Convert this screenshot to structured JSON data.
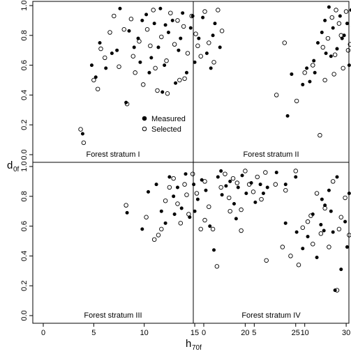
{
  "chart_data": {
    "type": "scatter",
    "xlabel": "h",
    "xlabel_sub": "70f",
    "ylabel": "d",
    "ylabel_sub": "0f",
    "xlim": [
      0,
      30
    ],
    "ylim": [
      0,
      1
    ],
    "x_ticks": [
      "0",
      "5",
      "10",
      "15",
      "20",
      "25",
      "30"
    ],
    "y_ticks": [
      "0.0",
      "0.2",
      "0.4",
      "0.6",
      "0.8",
      "1.0"
    ],
    "legend": {
      "placement": "panel I, lower-right",
      "entries": [
        {
          "marker": "filled",
          "label": "Measured"
        },
        {
          "marker": "open",
          "label": "Selected"
        }
      ]
    },
    "panels": [
      {
        "label": "Forest stratum I",
        "measured": [
          [
            3.9,
            0.14
          ],
          [
            4.8,
            0.6
          ],
          [
            5.6,
            0.75
          ],
          [
            6.8,
            0.68
          ],
          [
            7.3,
            0.7
          ],
          [
            7.6,
            0.98
          ],
          [
            8.2,
            0.35
          ],
          [
            8.5,
            0.83
          ],
          [
            9.0,
            0.72
          ],
          [
            9.4,
            0.78
          ],
          [
            9.8,
            0.9
          ],
          [
            10.2,
            0.94
          ],
          [
            10.7,
            0.65
          ],
          [
            11.0,
            0.88
          ],
          [
            11.4,
            0.72
          ],
          [
            11.6,
            0.98
          ],
          [
            12.0,
            0.6
          ],
          [
            12.4,
            0.82
          ],
          [
            12.8,
            0.9
          ],
          [
            13.1,
            0.48
          ],
          [
            13.4,
            0.7
          ],
          [
            13.8,
            0.95
          ],
          [
            14.2,
            0.55
          ],
          [
            14.6,
            0.85
          ],
          [
            15.0,
            0.62
          ],
          [
            15.4,
            0.78
          ],
          [
            15.8,
            0.92
          ],
          [
            16.2,
            0.68
          ],
          [
            16.6,
            0.58
          ],
          [
            17.0,
            0.88
          ],
          [
            17.5,
            0.72
          ],
          [
            5.2,
            0.52
          ],
          [
            6.2,
            0.58
          ],
          [
            9.6,
            0.62
          ],
          [
            10.5,
            0.55
          ],
          [
            12.1,
            0.87
          ],
          [
            13.6,
            0.78
          ],
          [
            14.8,
            0.93
          ],
          [
            16.8,
            0.8
          ],
          [
            11.8,
            0.42
          ]
        ],
        "selected": [
          [
            3.7,
            0.17
          ],
          [
            4.0,
            0.08
          ],
          [
            5.0,
            0.5
          ],
          [
            5.4,
            0.44
          ],
          [
            5.7,
            0.71
          ],
          [
            6.1,
            0.65
          ],
          [
            6.6,
            0.82
          ],
          [
            7.0,
            0.93
          ],
          [
            7.5,
            0.59
          ],
          [
            8.0,
            0.84
          ],
          [
            8.3,
            0.34
          ],
          [
            8.7,
            0.91
          ],
          [
            9.1,
            0.55
          ],
          [
            9.5,
            0.76
          ],
          [
            9.9,
            0.47
          ],
          [
            10.3,
            0.84
          ],
          [
            10.6,
            0.73
          ],
          [
            10.9,
            0.97
          ],
          [
            11.3,
            0.43
          ],
          [
            11.7,
            0.79
          ],
          [
            12.2,
            0.63
          ],
          [
            12.6,
            0.95
          ],
          [
            13.0,
            0.74
          ],
          [
            13.5,
            0.5
          ],
          [
            13.9,
            0.86
          ],
          [
            14.3,
            0.68
          ],
          [
            14.7,
            0.93
          ],
          [
            15.1,
            0.81
          ],
          [
            15.6,
            0.66
          ],
          [
            16.0,
            0.96
          ],
          [
            16.4,
            0.75
          ],
          [
            16.9,
            0.62
          ],
          [
            17.3,
            0.97
          ],
          [
            17.7,
            0.83
          ],
          [
            8.9,
            0.66
          ],
          [
            12.3,
            0.41
          ],
          [
            13.3,
            0.9
          ],
          [
            15.3,
            0.73
          ],
          [
            11.1,
            0.58
          ],
          [
            14.0,
            0.51
          ]
        ]
      },
      {
        "label": "Forest stratum II",
        "measured": [
          [
            8.3,
            0.26
          ],
          [
            8.7,
            0.54
          ],
          [
            9.8,
            0.47
          ],
          [
            10.5,
            0.49
          ],
          [
            10.9,
            0.63
          ],
          [
            11.3,
            0.75
          ],
          [
            11.7,
            0.82
          ],
          [
            12.0,
            0.9
          ],
          [
            12.4,
            0.99
          ],
          [
            12.8,
            0.85
          ],
          [
            13.2,
            0.71
          ],
          [
            13.5,
            0.93
          ],
          [
            13.9,
            0.8
          ],
          [
            14.2,
            0.88
          ],
          [
            14.6,
            0.97
          ],
          [
            15.0,
            0.76
          ],
          [
            15.4,
            0.92
          ],
          [
            15.8,
            0.84
          ],
          [
            16.1,
            0.98
          ],
          [
            16.5,
            0.72
          ],
          [
            16.9,
            0.9
          ],
          [
            17.3,
            0.81
          ],
          [
            17.7,
            0.95
          ],
          [
            18.2,
            0.69
          ],
          [
            18.6,
            0.87
          ],
          [
            19.0,
            0.78
          ],
          [
            11.0,
            0.55
          ],
          [
            12.6,
            0.66
          ],
          [
            14.4,
            0.6
          ],
          [
            15.7,
            0.86
          ],
          [
            17.0,
            0.96
          ],
          [
            16.3,
            0.62
          ],
          [
            13.7,
            0.78
          ],
          [
            15.2,
            0.98
          ],
          [
            12.1,
            0.68
          ],
          [
            18.4,
            0.75
          ],
          [
            14.9,
            0.52
          ],
          [
            16.7,
            0.94
          ],
          [
            10.2,
            0.58
          ]
        ],
        "selected": [
          [
            7.2,
            0.4
          ],
          [
            8.0,
            0.75
          ],
          [
            9.2,
            0.36
          ],
          [
            10.0,
            0.55
          ],
          [
            10.8,
            0.6
          ],
          [
            11.5,
            0.13
          ],
          [
            12.0,
            0.5
          ],
          [
            12.3,
            0.78
          ],
          [
            12.7,
            0.92
          ],
          [
            13.0,
            0.67
          ],
          [
            13.4,
            0.88
          ],
          [
            13.8,
            0.58
          ],
          [
            14.1,
            0.96
          ],
          [
            14.5,
            0.74
          ],
          [
            14.8,
            0.86
          ],
          [
            15.1,
            0.45
          ],
          [
            15.5,
            0.79
          ],
          [
            15.9,
            0.95
          ],
          [
            16.3,
            0.68
          ],
          [
            16.7,
            0.38
          ],
          [
            17.0,
            0.83
          ],
          [
            17.4,
            0.91
          ],
          [
            17.8,
            0.63
          ],
          [
            18.2,
            0.85
          ],
          [
            18.5,
            0.4
          ],
          [
            18.9,
            0.77
          ],
          [
            19.3,
            0.82
          ],
          [
            11.8,
            0.72
          ],
          [
            13.6,
            0.8
          ],
          [
            15.3,
            0.64
          ],
          [
            16.8,
            0.98
          ],
          [
            12.9,
            0.54
          ],
          [
            14.3,
            0.7
          ],
          [
            17.2,
            0.66
          ],
          [
            19.7,
            0.71
          ],
          [
            13.1,
            0.97
          ]
        ]
      },
      {
        "label": "Forest stratum III",
        "measured": [
          [
            8.3,
            0.69
          ],
          [
            9.8,
            0.58
          ],
          [
            10.4,
            0.83
          ],
          [
            11.2,
            0.88
          ],
          [
            11.7,
            0.7
          ],
          [
            12.1,
            0.62
          ],
          [
            12.5,
            0.93
          ],
          [
            12.9,
            0.8
          ],
          [
            13.3,
            0.86
          ],
          [
            13.7,
            0.72
          ],
          [
            14.1,
            0.95
          ],
          [
            14.5,
            0.66
          ],
          [
            14.9,
            0.88
          ],
          [
            15.3,
            0.78
          ],
          [
            15.7,
            0.91
          ],
          [
            16.1,
            0.84
          ],
          [
            16.5,
            0.6
          ],
          [
            16.9,
            0.44
          ],
          [
            17.3,
            0.93
          ],
          [
            17.7,
            0.81
          ],
          [
            18.1,
            0.87
          ],
          [
            18.5,
            0.9
          ],
          [
            18.9,
            0.75
          ],
          [
            19.3,
            0.86
          ],
          [
            19.7,
            0.94
          ],
          [
            20.1,
            0.82
          ],
          [
            20.6,
            0.89
          ],
          [
            21.0,
            0.76
          ],
          [
            21.5,
            0.88
          ],
          [
            22.2,
            0.86
          ],
          [
            23.1,
            0.96
          ],
          [
            24.0,
            0.88
          ],
          [
            25.0,
            0.93
          ],
          [
            27.6,
            0.78
          ],
          [
            15.0,
            0.7
          ],
          [
            17.6,
            0.97
          ],
          [
            19.1,
            0.65
          ],
          [
            21.8,
            0.82
          ],
          [
            13.0,
            0.68
          ]
        ],
        "selected": [
          [
            8.2,
            0.74
          ],
          [
            10.2,
            0.66
          ],
          [
            11.0,
            0.51
          ],
          [
            11.4,
            0.54
          ],
          [
            11.7,
            0.58
          ],
          [
            12.1,
            0.77
          ],
          [
            12.5,
            0.86
          ],
          [
            12.9,
            0.92
          ],
          [
            13.3,
            0.75
          ],
          [
            13.6,
            0.62
          ],
          [
            14.0,
            0.88
          ],
          [
            14.4,
            0.68
          ],
          [
            14.8,
            0.95
          ],
          [
            15.2,
            0.82
          ],
          [
            15.6,
            0.58
          ],
          [
            16.0,
            0.9
          ],
          [
            16.4,
            0.73
          ],
          [
            16.8,
            0.58
          ],
          [
            17.2,
            0.33
          ],
          [
            17.6,
            0.86
          ],
          [
            18.0,
            0.95
          ],
          [
            18.4,
            0.79
          ],
          [
            18.8,
            0.92
          ],
          [
            19.2,
            0.89
          ],
          [
            19.6,
            0.71
          ],
          [
            20.0,
            0.97
          ],
          [
            20.4,
            0.88
          ],
          [
            20.8,
            0.83
          ],
          [
            21.2,
            0.93
          ],
          [
            21.6,
            0.78
          ],
          [
            22.0,
            0.96
          ],
          [
            23.0,
            0.88
          ],
          [
            24.0,
            0.84
          ],
          [
            25.0,
            0.97
          ],
          [
            26.5,
            0.67
          ],
          [
            16.0,
            0.64
          ],
          [
            18.5,
            0.7
          ],
          [
            19.6,
            0.57
          ],
          [
            14.2,
            0.81
          ]
        ]
      },
      {
        "label": "Forest stratum IV",
        "measured": [
          [
            8.1,
            0.62
          ],
          [
            9.2,
            0.56
          ],
          [
            9.8,
            0.45
          ],
          [
            10.3,
            0.53
          ],
          [
            10.8,
            0.68
          ],
          [
            11.2,
            0.39
          ],
          [
            11.6,
            0.61
          ],
          [
            12.0,
            0.74
          ],
          [
            12.4,
            0.84
          ],
          [
            12.8,
            0.56
          ],
          [
            13.2,
            0.93
          ],
          [
            13.6,
            0.31
          ],
          [
            14.0,
            0.63
          ],
          [
            14.4,
            0.82
          ],
          [
            14.8,
            0.71
          ],
          [
            15.2,
            0.89
          ],
          [
            15.6,
            0.52
          ],
          [
            16.0,
            0.76
          ],
          [
            16.4,
            0.93
          ],
          [
            16.8,
            0.65
          ],
          [
            17.2,
            0.86
          ],
          [
            17.6,
            0.73
          ],
          [
            18.0,
            0.58
          ],
          [
            18.4,
            0.84
          ],
          [
            18.8,
            0.66
          ],
          [
            19.2,
            0.79
          ],
          [
            19.6,
            0.47
          ],
          [
            20.0,
            0.88
          ],
          [
            20.5,
            0.7
          ],
          [
            21.0,
            0.62
          ],
          [
            13.0,
            0.17
          ],
          [
            15.0,
            0.35
          ],
          [
            17.4,
            0.43
          ],
          [
            14.2,
            0.46
          ],
          [
            16.6,
            0.5
          ],
          [
            19.0,
            0.55
          ],
          [
            12.6,
            0.7
          ],
          [
            15.8,
            0.95
          ],
          [
            11.9,
            0.57
          ]
        ],
        "selected": [
          [
            6.2,
            0.37
          ],
          [
            7.8,
            0.46
          ],
          [
            8.6,
            0.4
          ],
          [
            9.4,
            0.34
          ],
          [
            9.8,
            0.59
          ],
          [
            10.3,
            0.63
          ],
          [
            10.8,
            0.48
          ],
          [
            11.2,
            0.82
          ],
          [
            11.6,
            0.55
          ],
          [
            12.0,
            0.72
          ],
          [
            12.4,
            0.46
          ],
          [
            12.8,
            0.9
          ],
          [
            13.2,
            0.17
          ],
          [
            13.6,
            0.66
          ],
          [
            14.0,
            0.79
          ],
          [
            14.4,
            0.54
          ],
          [
            14.8,
            0.95
          ],
          [
            15.2,
            0.33
          ],
          [
            15.6,
            0.72
          ],
          [
            16.0,
            0.86
          ],
          [
            16.4,
            0.61
          ],
          [
            16.8,
            0.34
          ],
          [
            17.2,
            0.77
          ],
          [
            17.6,
            0.9
          ],
          [
            18.0,
            0.68
          ],
          [
            18.4,
            0.53
          ],
          [
            18.8,
            0.82
          ],
          [
            19.2,
            0.6
          ],
          [
            19.6,
            0.74
          ],
          [
            20.0,
            0.65
          ],
          [
            20.5,
            0.62
          ],
          [
            21.1,
            0.6
          ],
          [
            21.5,
            0.8
          ],
          [
            15.5,
            0.24
          ],
          [
            16.4,
            0.98
          ],
          [
            13.4,
            0.58
          ],
          [
            17.8,
            0.43
          ]
        ]
      }
    ]
  }
}
